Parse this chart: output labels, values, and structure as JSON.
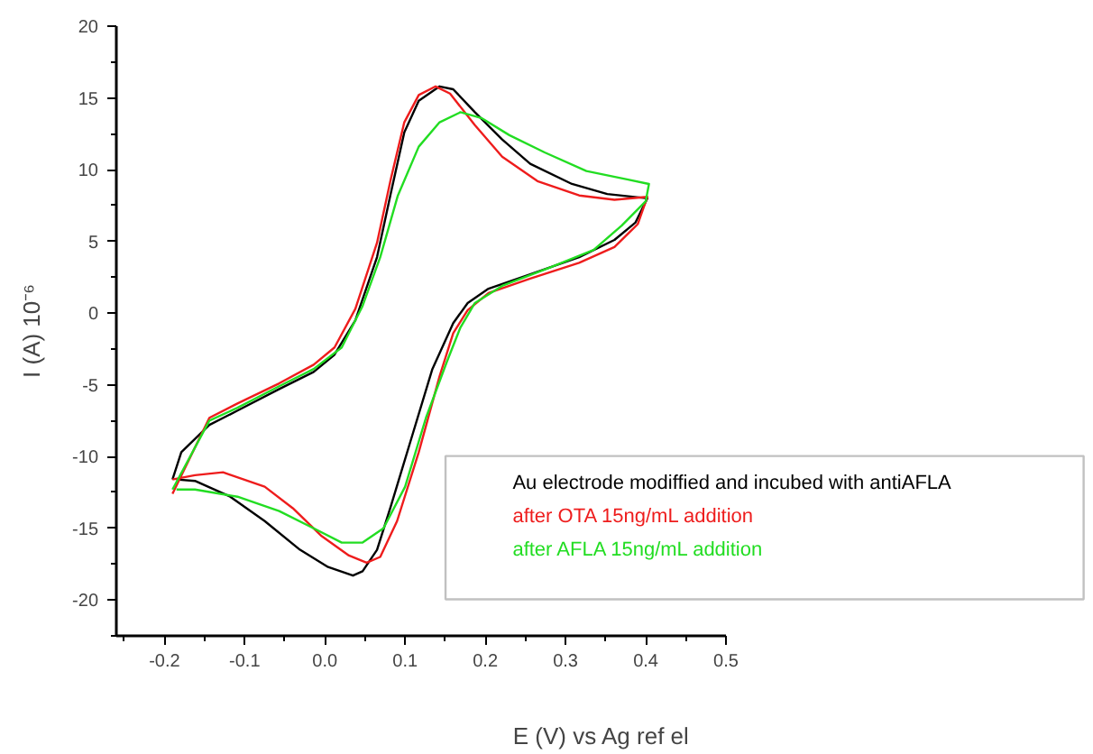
{
  "chart_data": {
    "type": "line",
    "xlabel": "E (V) vs Ag ref el",
    "ylabel": "I (A) 10⁻⁶",
    "xlim": [
      -0.26,
      0.5
    ],
    "ylim": [
      -22.5,
      20
    ],
    "xticks": [
      -0.2,
      -0.1,
      {
        "value": 0,
        "label": "0.0"
      },
      0.1,
      0.2,
      0.3,
      0.4,
      0.5
    ],
    "yticks": [
      -20,
      -15,
      -10,
      -5,
      0,
      5,
      10,
      15,
      20
    ],
    "grid": false,
    "legend": "bottom right",
    "marker": "none",
    "line_style": "solid",
    "series": [
      {
        "name": "Au electrode modiffied and incubed with antiAFLA",
        "color": "#000000",
        "x": [
          -0.19,
          -0.179,
          -0.144,
          -0.109,
          -0.057,
          -0.014,
          0.012,
          0.038,
          0.065,
          0.082,
          0.099,
          0.117,
          0.143,
          0.16,
          0.187,
          0.221,
          0.256,
          0.308,
          0.352,
          0.402,
          0.387,
          0.361,
          0.317,
          0.256,
          0.204,
          0.178,
          0.16,
          0.134,
          0.108,
          0.082,
          0.065,
          0.047,
          0.035,
          0.004,
          -0.031,
          -0.075,
          -0.118,
          -0.162,
          -0.185
        ],
        "values": [
          -11.6,
          -9.7,
          -7.8,
          -6.8,
          -5.3,
          -4.1,
          -2.9,
          -0.5,
          3.9,
          8.3,
          12.6,
          14.8,
          15.8,
          15.6,
          14.0,
          12.1,
          10.4,
          9.0,
          8.3,
          8.0,
          6.3,
          5.1,
          3.9,
          2.7,
          1.7,
          0.7,
          -0.7,
          -3.9,
          -8.7,
          -13.5,
          -16.5,
          -18.0,
          -18.3,
          -17.7,
          -16.5,
          -14.5,
          -12.8,
          -11.7,
          -11.6
        ]
      },
      {
        "name": "after OTA 15ng/mL addition",
        "color": "#ee1c1c",
        "x": [
          -0.19,
          -0.144,
          -0.109,
          -0.057,
          -0.014,
          0.012,
          0.038,
          0.065,
          0.082,
          0.099,
          0.117,
          0.138,
          0.156,
          0.187,
          0.221,
          0.265,
          0.317,
          0.361,
          0.402,
          0.39,
          0.361,
          0.317,
          0.256,
          0.204,
          0.178,
          0.16,
          0.143,
          0.117,
          0.09,
          0.069,
          0.052,
          0.03,
          -0.005,
          -0.04,
          -0.075,
          -0.127,
          -0.162,
          -0.19
        ],
        "values": [
          -12.6,
          -7.3,
          -6.3,
          -4.9,
          -3.6,
          -2.4,
          0.3,
          4.9,
          9.3,
          13.3,
          15.2,
          15.8,
          15.3,
          13.1,
          10.9,
          9.2,
          8.2,
          7.9,
          8.1,
          6.2,
          4.6,
          3.5,
          2.4,
          1.4,
          0.2,
          -1.4,
          -4.4,
          -9.7,
          -14.5,
          -17.0,
          -17.4,
          -16.9,
          -15.5,
          -13.6,
          -12.1,
          -11.1,
          -11.3,
          -11.6
        ]
      },
      {
        "name": "after AFLA 15ng/mL addition",
        "color": "#22dd22",
        "x": [
          -0.19,
          -0.144,
          -0.109,
          -0.057,
          -0.014,
          0.021,
          0.047,
          0.069,
          0.091,
          0.117,
          0.143,
          0.169,
          0.195,
          0.23,
          0.274,
          0.326,
          0.378,
          0.404,
          0.4,
          0.37,
          0.335,
          0.282,
          0.221,
          0.187,
          0.169,
          0.152,
          0.126,
          0.1,
          0.073,
          0.047,
          0.021,
          -0.014,
          -0.057,
          -0.109,
          -0.162,
          -0.185
        ],
        "values": [
          -12.3,
          -7.5,
          -6.6,
          -5.1,
          -3.9,
          -2.4,
          0.5,
          3.9,
          8.2,
          11.6,
          13.3,
          14.0,
          13.6,
          12.4,
          11.2,
          9.9,
          9.3,
          9.0,
          7.8,
          6.1,
          4.4,
          3.2,
          1.9,
          0.7,
          -1.0,
          -3.4,
          -7.3,
          -12.1,
          -15.0,
          -16.0,
          -16.0,
          -15.0,
          -13.8,
          -12.8,
          -12.3,
          -12.3
        ]
      }
    ]
  }
}
